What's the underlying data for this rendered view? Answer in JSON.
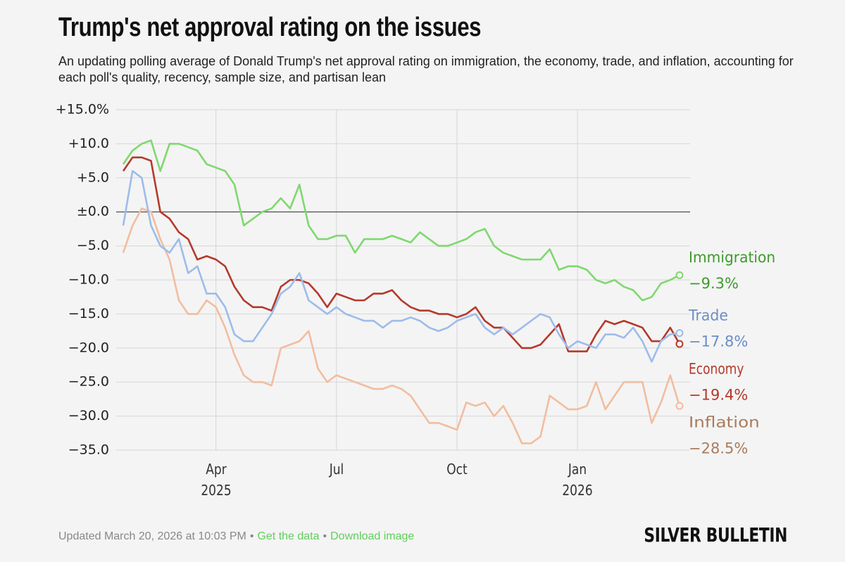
{
  "chart_data": {
    "type": "line",
    "title": "Trump's net approval rating on the issues",
    "subtitle": "An updating polling average of Donald Trump's net approval rating on immigration, the economy, trade, and inflation, accounting for each poll's quality, recency, sample size, and partisan lean",
    "categories": [
      null,
      null,
      null,
      null,
      null,
      null,
      null,
      null,
      null,
      null,
      "Apr 2025",
      null,
      null,
      null,
      null,
      null,
      null,
      null,
      null,
      null,
      null,
      null,
      null,
      "Jul",
      null,
      null,
      null,
      null,
      null,
      null,
      null,
      null,
      null,
      null,
      null,
      null,
      "Oct",
      null,
      null,
      null,
      null,
      null,
      null,
      null,
      null,
      null,
      null,
      null,
      null,
      "Jan 2026",
      null,
      null,
      null,
      null,
      null,
      null,
      null,
      null,
      null,
      null,
      null
    ],
    "ylim": [
      -35,
      15
    ],
    "yticks": [
      {
        "value": 15,
        "label": "+15.0%"
      },
      {
        "value": 10,
        "label": "+10.0"
      },
      {
        "value": 5,
        "label": "+5.0"
      },
      {
        "value": 0,
        "label": "±0.0"
      },
      {
        "value": -5,
        "label": "−5.0"
      },
      {
        "value": -10,
        "label": "−10.0"
      },
      {
        "value": -15,
        "label": "−15.0"
      },
      {
        "value": -20,
        "label": "−20.0"
      },
      {
        "value": -25,
        "label": "−25.0"
      },
      {
        "value": -30,
        "label": "−30.0"
      },
      {
        "value": -35,
        "label": "−35.0"
      }
    ],
    "grid": true,
    "series": [
      {
        "name": "Immigration",
        "color": "#7fd86f",
        "label_color": "#3f9a2e",
        "end_label": "−9.3%",
        "values": [
          7,
          9,
          10,
          10.5,
          6,
          10,
          10,
          9.5,
          9,
          7,
          6.5,
          6,
          4,
          -2,
          -1,
          0,
          0.5,
          2,
          0.5,
          4,
          -2,
          -4,
          -4,
          -3.5,
          -3.5,
          -6,
          -4,
          -4,
          -4,
          -3.5,
          -4,
          -4.5,
          -3,
          -4,
          -5,
          -5,
          -4.5,
          -4,
          -3,
          -2.5,
          -5,
          -6,
          -6.5,
          -7,
          -7,
          -7,
          -5.5,
          -8.5,
          -8,
          -8,
          -8.5,
          -10,
          -10.5,
          -10,
          -11,
          -11.5,
          -13,
          -12.5,
          -10.5,
          -10,
          -9.3
        ]
      },
      {
        "name": "Trade",
        "color": "#9dbcea",
        "label_color": "#6b8ec4",
        "end_label": "−17.8%",
        "values": [
          -2,
          6,
          5,
          -2,
          -5,
          -6,
          -4,
          -9,
          -8,
          -12,
          -12,
          -14,
          -18,
          -19,
          -19,
          -17,
          -15,
          -12,
          -11,
          -9,
          -13,
          -14,
          -15,
          -14,
          -15,
          -15.5,
          -16,
          -16,
          -17,
          -16,
          -16,
          -15.5,
          -16,
          -17,
          -17.5,
          -17,
          -16,
          -15.5,
          -15,
          -17,
          -18,
          -17,
          -18,
          -17,
          -16,
          -15,
          -15.5,
          -18,
          -20,
          -19,
          -19.5,
          -20,
          -18,
          -18,
          -18.5,
          -17,
          -19,
          -22,
          -19,
          -18,
          -17.8
        ]
      },
      {
        "name": "Economy",
        "color": "#b5392a",
        "label_color": "#b5392a",
        "end_label": "−19.4%",
        "values": [
          6,
          8,
          8,
          7.5,
          0,
          -1,
          -3,
          -4,
          -7,
          -6.5,
          -7,
          -8,
          -11,
          -13,
          -14,
          -14,
          -14.5,
          -11,
          -10,
          -10,
          -10.5,
          -12,
          -14,
          -12,
          -12.5,
          -13,
          -13,
          -12,
          -12,
          -11.5,
          -13,
          -14,
          -14.5,
          -14.5,
          -15,
          -15,
          -15.5,
          -15,
          -14,
          -16,
          -17,
          -17,
          -18.5,
          -20,
          -20,
          -19.5,
          -18,
          -16.5,
          -20.5,
          -20.5,
          -20.5,
          -18,
          -16,
          -16.5,
          -16,
          -16.5,
          -17,
          -19,
          -19,
          -17,
          -19.4
        ]
      },
      {
        "name": "Inflation",
        "color": "#f2bd9f",
        "label_color": "#a97c5d",
        "end_label": "−28.5%",
        "values": [
          -6,
          -2,
          0.5,
          0,
          -4,
          -7,
          -13,
          -15,
          -15,
          -13,
          -14,
          -17,
          -21,
          -24,
          -25,
          -25,
          -25.5,
          -20,
          -19.5,
          -19,
          -17.5,
          -23,
          -25,
          -24,
          -24.5,
          -25,
          -25.5,
          -26,
          -26,
          -25.5,
          -26,
          -27,
          -29,
          -31,
          -31,
          -31.5,
          -32,
          -28,
          -28.5,
          -28,
          -30,
          -28.5,
          -31,
          -34,
          -34,
          -33,
          -27,
          -28,
          -29,
          -29,
          -28.5,
          -25,
          -29,
          -27,
          -25,
          -25,
          -25,
          -31,
          -28,
          -24,
          -28.5
        ]
      }
    ]
  },
  "footer": {
    "updated": "Updated March 20, 2026 at 10:03 PM",
    "separator": "•",
    "links": [
      "Get the data",
      "Download image"
    ],
    "brand": "SILVER BULLETIN"
  }
}
